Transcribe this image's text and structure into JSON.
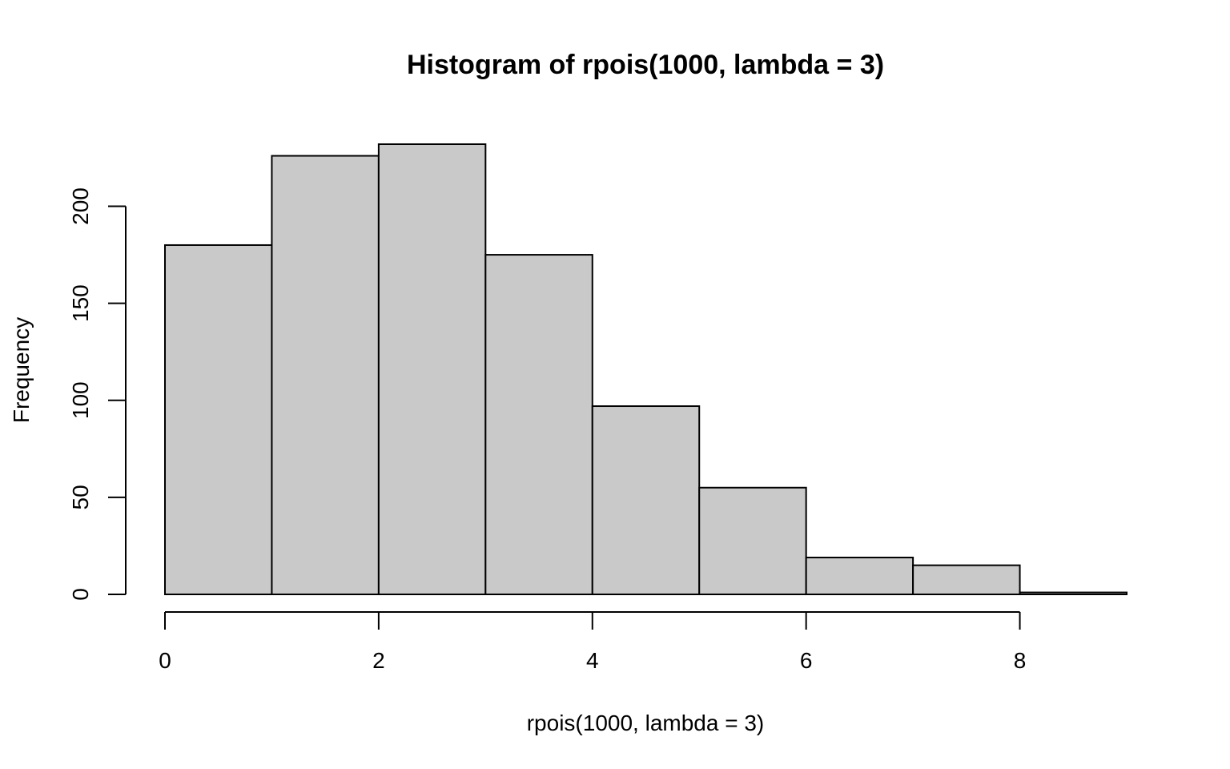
{
  "chart_data": {
    "type": "bar",
    "title": "Histogram of rpois(1000, lambda = 3)",
    "xlabel": "rpois(1000, lambda = 3)",
    "ylabel": "Frequency",
    "bins": [
      {
        "x0": 0,
        "x1": 1,
        "count": 180
      },
      {
        "x0": 1,
        "x1": 2,
        "count": 226
      },
      {
        "x0": 2,
        "x1": 3,
        "count": 232
      },
      {
        "x0": 3,
        "x1": 4,
        "count": 175
      },
      {
        "x0": 4,
        "x1": 5,
        "count": 97
      },
      {
        "x0": 5,
        "x1": 6,
        "count": 55
      },
      {
        "x0": 6,
        "x1": 7,
        "count": 19
      },
      {
        "x0": 7,
        "x1": 8,
        "count": 15
      },
      {
        "x0": 8,
        "x1": 9,
        "count": 1
      }
    ],
    "xlim": [
      0,
      9
    ],
    "ylim": [
      0,
      232
    ],
    "x_ticks": [
      "0",
      "2",
      "4",
      "6",
      "8"
    ],
    "y_ticks": [
      "0",
      "50",
      "100",
      "150",
      "200"
    ],
    "grid": false,
    "bar_fill": "#c9c9c9",
    "bar_stroke": "#000000"
  }
}
